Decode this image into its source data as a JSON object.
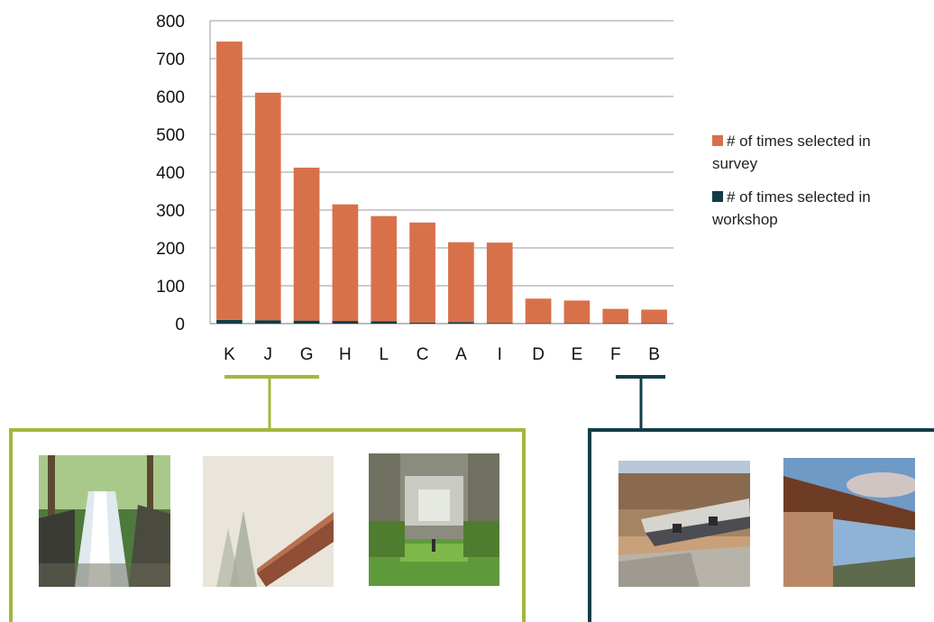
{
  "chart_data": {
    "type": "bar",
    "stacked": true,
    "categories": [
      "K",
      "J",
      "G",
      "H",
      "L",
      "C",
      "A",
      "I",
      "D",
      "E",
      "F",
      "B"
    ],
    "series": [
      {
        "name": "# of times selected in workshop",
        "color": "#123c46",
        "values": [
          10,
          9,
          8,
          7,
          6,
          3,
          4,
          2,
          1,
          1,
          1,
          1
        ]
      },
      {
        "name": "# of times selected in survey",
        "color": "#d8714a",
        "values": [
          735,
          601,
          404,
          308,
          278,
          264,
          211,
          212,
          65,
          60,
          38,
          36
        ]
      }
    ],
    "yticks": [
      "0",
      "100",
      "200",
      "300",
      "400",
      "500",
      "600",
      "700",
      "800"
    ],
    "ylim": [
      0,
      800
    ],
    "grid": true,
    "legend_position": "right"
  },
  "legend": [
    {
      "line1": "# of times selected in",
      "line2": "survey",
      "color": "#d8714a"
    },
    {
      "line1": "# of times selected in",
      "line2": "workshop",
      "color": "#123c46"
    }
  ],
  "groups": [
    {
      "categories": [
        "K",
        "J",
        "G"
      ],
      "color": "#a6b63b",
      "photos": [
        "waterfall-photo",
        "foggy-bridge-photo",
        "overgrown-concrete-hall-photo"
      ]
    },
    {
      "categories": [
        "F",
        "B"
      ],
      "color": "#133d47",
      "photos": [
        "concrete-overlook-photo",
        "cantilevered-roof-photo"
      ]
    }
  ]
}
